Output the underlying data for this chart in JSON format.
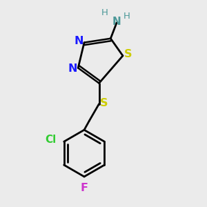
{
  "background_color": "#ebebeb",
  "figsize": [
    3.0,
    3.0
  ],
  "dpi": 100,
  "atom_colors": {
    "N": "#1a1aff",
    "S": "#cccc00",
    "S_ring": "#cccc00",
    "Cl": "#33cc33",
    "F": "#cc33cc",
    "NH2": "#4d9999",
    "C": "#000000"
  }
}
